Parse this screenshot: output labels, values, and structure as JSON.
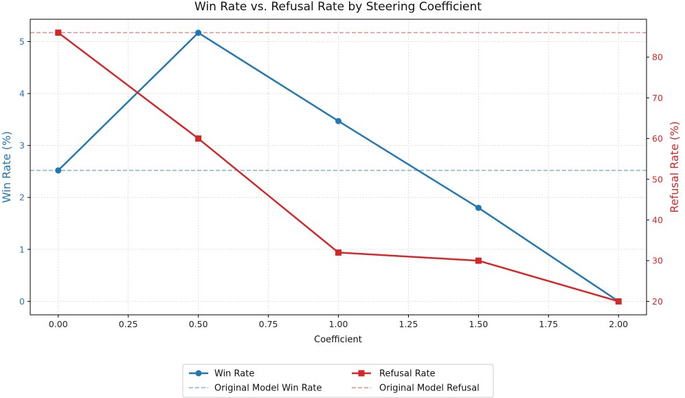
{
  "chart_data": {
    "type": "line",
    "title": "Win Rate vs. Refusal Rate by Steering Coefficient",
    "xlabel": "Coefficient",
    "y1label": "Win Rate (%)",
    "y2label": "Refusal Rate (%)",
    "x": [
      0.0,
      0.5,
      1.0,
      1.5,
      2.0
    ],
    "x_ticks": [
      "0.00",
      "0.25",
      "0.50",
      "0.75",
      "1.00",
      "1.25",
      "1.50",
      "1.75",
      "2.00"
    ],
    "x_tick_values": [
      0.0,
      0.25,
      0.5,
      0.75,
      1.0,
      1.25,
      1.5,
      1.75,
      2.0
    ],
    "xlim": [
      -0.1,
      2.1
    ],
    "y1_ticks": [
      "0",
      "1",
      "2",
      "3",
      "4",
      "5"
    ],
    "y1_tick_values": [
      0,
      1,
      2,
      3,
      4,
      5
    ],
    "y1lim": [
      -0.26,
      5.43
    ],
    "y2_ticks": [
      "20",
      "30",
      "40",
      "50",
      "60",
      "70",
      "80"
    ],
    "y2_tick_values": [
      20,
      30,
      40,
      50,
      60,
      70,
      80
    ],
    "y2lim": [
      16.7,
      89.3
    ],
    "grid": true,
    "series": [
      {
        "name": "Win Rate",
        "axis": "left",
        "values": [
          2.52,
          5.17,
          3.47,
          1.8,
          0.0
        ],
        "marker": "circle",
        "color": "#1f77b4"
      },
      {
        "name": "Refusal Rate",
        "axis": "right",
        "values": [
          86,
          60,
          32,
          30,
          20
        ],
        "marker": "square",
        "color": "#d62728"
      }
    ],
    "reference_lines": [
      {
        "name": "Original Model Win Rate",
        "axis": "left",
        "value": 2.52,
        "color": "#1f77b4"
      },
      {
        "name": "Original Model Refusal",
        "axis": "right",
        "value": 86,
        "color": "#d62728"
      }
    ],
    "legend": {
      "placement": "bottom-center",
      "entries": [
        "Win Rate",
        "Refusal Rate",
        "Original Model Win Rate",
        "Original Model Refusal"
      ]
    },
    "colors": {
      "left_axis": "#1f77b4",
      "right_axis": "#d62728",
      "grid": "#cccccc"
    }
  }
}
